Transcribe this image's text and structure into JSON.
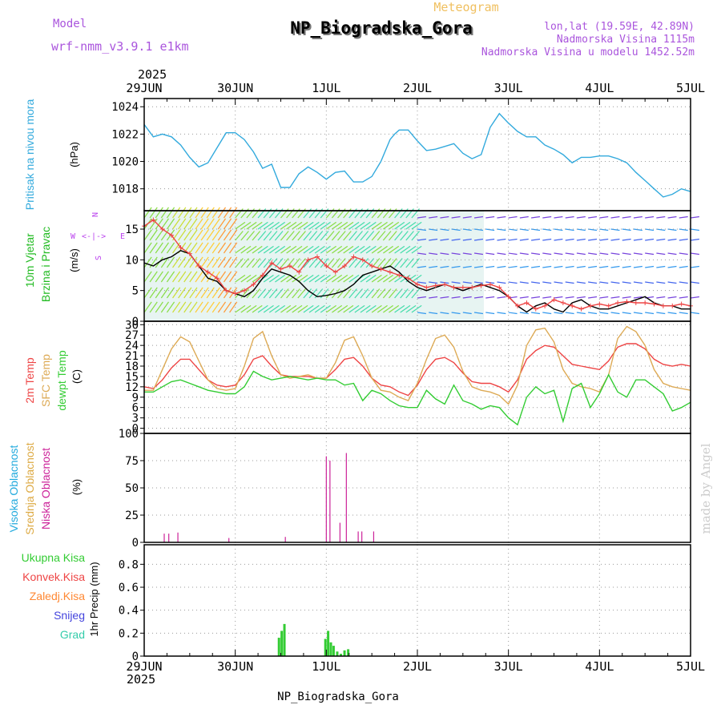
{
  "header": {
    "model_label": "Model",
    "model_name": "wrf-nmm_v3.9.1 e1km",
    "meteogram_label": "Meteogram",
    "station_title": "NP_Biogradska_Gora",
    "lonlat": "lon,lat (19.59E, 42.89N)",
    "elevation": "Nadmorska Visina 1115m",
    "model_elevation": "Nadmorska Visina u modelu 1452.52m",
    "year_top": "2025",
    "year_bottom": "2025",
    "footer_station": "NP_Biogradska_Gora",
    "credit": "made by Angel"
  },
  "colors": {
    "pressure": "#33aadd",
    "temp2m": "#ee4444",
    "sfc": "#ddaa55",
    "dewpt": "#33cc33",
    "cloud_high": "#22aadd",
    "cloud_mid": "#ddaa44",
    "cloud_low": "#cc2299",
    "precip": "#33cc33",
    "conv": "#ee4444",
    "frozen": "#ff8833",
    "snow": "#4444dd",
    "hail": "#33ccaa",
    "wind_label": "#22bb22",
    "compass": "#bb44ee",
    "model_text": "#aa55dd",
    "meteogram_text": "#f0c060"
  },
  "time_axis": {
    "ticks": [
      "29JUN",
      "30JUN",
      "1JUL",
      "2JUL",
      "3JUL",
      "4JUL",
      "5JUL"
    ]
  },
  "panel_labels": {
    "pressure": {
      "title": "Pritisak na nivou mora",
      "unit": "(hPa)"
    },
    "wind": {
      "line1": "10m Vjetar",
      "line2": "Brzina i Pravac",
      "unit": "(m/s)",
      "compass_top": "N",
      "compass_west": "W",
      "compass_east": "E",
      "compass_bottom": "S",
      "compass_mid": "<-|->"
    },
    "temp": {
      "t2m": "2m Temp",
      "sfc": "SFC Temp",
      "dew": "dewpt Temp",
      "unit": "(C)"
    },
    "cloud": {
      "high": "Visoka Oblacnost",
      "mid": "Srednja Oblacnost",
      "low": "Niska Oblacnost",
      "unit": "(%)"
    },
    "precip": {
      "total": "Ukupna Kisa",
      "conv": "Konvek.Kisa",
      "frozen": "Zaledj.Kisa",
      "snow": "Snijeg",
      "hail": "Grad",
      "unit": "1hr Precip (mm)"
    }
  },
  "chart_data": [
    {
      "type": "line",
      "name": "pressure",
      "yticks": [
        "1024",
        "1022",
        "1020",
        "1018"
      ],
      "ylim": [
        1016.4,
        1024.6
      ],
      "x_days": [
        0,
        0.1,
        0.2,
        0.3,
        0.4,
        0.5,
        0.6,
        0.7,
        0.8,
        0.9,
        1.0,
        1.1,
        1.2,
        1.3,
        1.4,
        1.5,
        1.6,
        1.7,
        1.8,
        1.9,
        2.0,
        2.1,
        2.2,
        2.3,
        2.4,
        2.5,
        2.6,
        2.7,
        2.75,
        2.8,
        2.9,
        3.0,
        3.1,
        3.2,
        3.3,
        3.4,
        3.5,
        3.6,
        3.7,
        3.8,
        3.9,
        4.0,
        4.1,
        4.2,
        4.3,
        4.4,
        4.5,
        4.6,
        4.7,
        4.8,
        4.9,
        5.0,
        5.1,
        5.2,
        5.3,
        5.4,
        5.5,
        5.6,
        5.7,
        5.8,
        5.9,
        6.0
      ],
      "series": [
        {
          "color_key": "pressure",
          "values": [
            1022.7,
            1021.8,
            1022.0,
            1021.8,
            1021.2,
            1020.3,
            1019.6,
            1019.9,
            1021.0,
            1022.1,
            1022.1,
            1021.6,
            1020.7,
            1019.5,
            1019.8,
            1018.1,
            1018.1,
            1019.1,
            1019.6,
            1019.2,
            1018.7,
            1019.2,
            1019.3,
            1018.5,
            1018.5,
            1018.9,
            1020.0,
            1021.6,
            1022.0,
            1022.3,
            1022.3,
            1021.5,
            1020.8,
            1020.9,
            1021.1,
            1021.3,
            1020.6,
            1020.2,
            1020.5,
            1022.5,
            1023.5,
            1022.8,
            1022.2,
            1021.8,
            1021.8,
            1021.2,
            1020.9,
            1020.5,
            1019.9,
            1020.3,
            1020.3,
            1020.4,
            1020.4,
            1020.2,
            1019.9,
            1019.2,
            1018.6,
            1018.0,
            1017.4,
            1017.6,
            1018.0,
            1017.8
          ]
        }
      ]
    },
    {
      "type": "line",
      "name": "wind_speed",
      "yticks": [
        "15",
        "10",
        "5",
        "0"
      ],
      "ylim": [
        0,
        18
      ],
      "x_days": [
        0,
        0.1,
        0.2,
        0.3,
        0.4,
        0.5,
        0.6,
        0.7,
        0.8,
        0.9,
        1.0,
        1.1,
        1.2,
        1.3,
        1.4,
        1.5,
        1.6,
        1.7,
        1.8,
        1.9,
        2.0,
        2.1,
        2.2,
        2.3,
        2.4,
        2.5,
        2.6,
        2.7,
        2.8,
        2.9,
        3.0,
        3.1,
        3.2,
        3.3,
        3.4,
        3.5,
        3.6,
        3.7,
        3.8,
        3.9,
        4.0,
        4.1,
        4.2,
        4.3,
        4.4,
        4.5,
        4.6,
        4.7,
        4.8,
        4.9,
        5.0,
        5.1,
        5.2,
        5.3,
        5.4,
        5.5,
        5.6,
        5.7,
        5.8,
        5.9,
        6.0
      ],
      "series": [
        {
          "name": "speed",
          "color": "#000000",
          "values": [
            9.5,
            9.0,
            10.0,
            10.5,
            11.5,
            11.0,
            9.0,
            7.0,
            6.5,
            5.0,
            4.5,
            4.0,
            5.0,
            7.0,
            8.5,
            8.0,
            7.5,
            6.5,
            5.0,
            4.0,
            4.2,
            4.5,
            5.0,
            6.0,
            7.5,
            8.0,
            8.5,
            9.0,
            8.0,
            6.5,
            5.5,
            5.0,
            5.5,
            6.0,
            5.5,
            5.0,
            5.5,
            6.0,
            5.5,
            5.0,
            4.0,
            2.5,
            1.5,
            2.5,
            3.0,
            2.0,
            1.5,
            3.0,
            3.5,
            2.5,
            2.0,
            2.0,
            2.5,
            3.0,
            3.5,
            4.0,
            3.0,
            2.5,
            2.5,
            2.0,
            2.0
          ]
        },
        {
          "name": "gust",
          "color": "#ee4444",
          "values": [
            15.5,
            16.5,
            15.0,
            14.0,
            12.0,
            11.0,
            9.0,
            8.0,
            7.0,
            5.0,
            4.5,
            5.0,
            6.0,
            7.5,
            9.5,
            8.5,
            9.0,
            8.0,
            10.0,
            10.5,
            9.0,
            8.0,
            9.0,
            10.5,
            10.0,
            9.0,
            8.5,
            8.0,
            7.5,
            7.0,
            6.0,
            5.5,
            5.8,
            6.0,
            5.5,
            5.5,
            5.5,
            5.8,
            6.0,
            5.5,
            4.0,
            2.5,
            3.0,
            2.0,
            2.5,
            3.5,
            3.0,
            2.5,
            2.0,
            2.5,
            2.8,
            2.5,
            3.0,
            3.2,
            3.0,
            3.0,
            2.8,
            2.5,
            2.5,
            2.8,
            2.5
          ]
        }
      ]
    },
    {
      "type": "line",
      "name": "temperature",
      "yticks": [
        "30",
        "27",
        "24",
        "21",
        "18",
        "15",
        "12",
        "9",
        "6",
        "3",
        "0"
      ],
      "ylim": [
        -1.5,
        31
      ],
      "x_days": [
        0,
        0.1,
        0.2,
        0.3,
        0.4,
        0.5,
        0.6,
        0.7,
        0.8,
        0.9,
        1.0,
        1.1,
        1.2,
        1.3,
        1.4,
        1.5,
        1.6,
        1.7,
        1.8,
        1.9,
        2.0,
        2.1,
        2.2,
        2.3,
        2.4,
        2.5,
        2.6,
        2.7,
        2.8,
        2.9,
        3.0,
        3.1,
        3.2,
        3.3,
        3.4,
        3.5,
        3.6,
        3.7,
        3.8,
        3.9,
        4.0,
        4.1,
        4.2,
        4.3,
        4.4,
        4.5,
        4.6,
        4.7,
        4.8,
        4.9,
        5.0,
        5.1,
        5.2,
        5.3,
        5.4,
        5.5,
        5.6,
        5.7,
        5.8,
        5.9,
        6.0
      ],
      "series": [
        {
          "name": "2m Temp",
          "color_key": "temp2m",
          "values": [
            12.0,
            11.5,
            14.0,
            17.5,
            20.0,
            20.0,
            17.0,
            14.0,
            12.5,
            12.0,
            12.5,
            15.5,
            20.0,
            21.0,
            18.0,
            15.5,
            15.0,
            15.0,
            15.0,
            14.5,
            14.5,
            17.0,
            20.0,
            20.5,
            18.0,
            14.5,
            12.5,
            12.0,
            10.5,
            9.5,
            12.5,
            17.0,
            20.0,
            20.5,
            19.0,
            16.0,
            13.5,
            13.0,
            13.0,
            12.0,
            10.5,
            14.0,
            20.0,
            22.5,
            24.0,
            23.5,
            21.0,
            18.5,
            18.0,
            17.5,
            17.0,
            19.5,
            23.5,
            24.5,
            24.5,
            23.0,
            20.0,
            18.5,
            18.0,
            18.5,
            18.0
          ]
        },
        {
          "name": "SFC Temp",
          "color_key": "sfc",
          "values": [
            11.0,
            11.0,
            17.0,
            23.0,
            26.5,
            25.0,
            19.5,
            14.0,
            11.5,
            11.0,
            11.5,
            18.0,
            26.0,
            28.0,
            21.0,
            15.5,
            14.5,
            15.0,
            15.5,
            14.5,
            14.5,
            19.0,
            25.5,
            26.5,
            21.0,
            14.5,
            11.0,
            10.5,
            9.0,
            8.0,
            13.0,
            20.0,
            26.0,
            27.0,
            23.5,
            16.5,
            12.0,
            11.0,
            10.5,
            9.5,
            7.0,
            12.5,
            24.0,
            28.5,
            29.0,
            25.0,
            17.0,
            13.0,
            12.0,
            11.5,
            10.5,
            15.5,
            26.0,
            29.5,
            28.0,
            24.0,
            17.0,
            13.0,
            12.0,
            11.5,
            11.0
          ]
        },
        {
          "name": "dewpt Temp",
          "color_key": "dewpt",
          "values": [
            10.5,
            10.5,
            12.0,
            13.5,
            14.0,
            13.0,
            12.0,
            11.0,
            10.5,
            10.0,
            10.0,
            12.0,
            16.5,
            15.0,
            14.0,
            14.5,
            15.0,
            14.5,
            14.0,
            14.5,
            14.0,
            14.0,
            12.5,
            13.0,
            8.0,
            11.0,
            10.0,
            8.0,
            6.5,
            6.0,
            6.0,
            11.0,
            8.5,
            7.0,
            12.5,
            8.0,
            7.0,
            5.5,
            6.5,
            6.0,
            3.0,
            1.0,
            9.0,
            12.0,
            10.0,
            11.0,
            2.0,
            11.5,
            13.0,
            6.0,
            10.0,
            15.5,
            10.5,
            9.0,
            14.0,
            14.0,
            12.0,
            10.0,
            5.0,
            6.0,
            7.5
          ]
        }
      ]
    },
    {
      "type": "bar",
      "name": "cloud_cover",
      "yticks": [
        "100",
        "75",
        "50",
        "25",
        "0"
      ],
      "ylim": [
        0,
        100
      ],
      "x_days": [
        0.22,
        0.27,
        0.37,
        0.93,
        1.55,
        2.0,
        2.04,
        2.15,
        2.22,
        2.35,
        2.39,
        2.52
      ],
      "series": [
        {
          "name": "Niska Oblacnost",
          "color_key": "cloud_low",
          "values": [
            8,
            8,
            9,
            4,
            5,
            79,
            75,
            18,
            82,
            10,
            10,
            10
          ]
        }
      ]
    },
    {
      "type": "bar",
      "name": "precipitation",
      "yticks": [
        "0.8",
        "0.6",
        "0.4",
        "0.2",
        "0"
      ],
      "ylim": [
        0,
        0.97
      ],
      "x_days": [
        1.48,
        1.51,
        1.54,
        1.99,
        2.02,
        2.05,
        2.08,
        2.12,
        2.16,
        2.2,
        2.24
      ],
      "series": [
        {
          "name": "Ukupna Kisa",
          "color_key": "precip",
          "values": [
            0.16,
            0.22,
            0.28,
            0.15,
            0.22,
            0.12,
            0.09,
            0.04,
            0.02,
            0.05,
            0.06
          ]
        }
      ]
    }
  ]
}
